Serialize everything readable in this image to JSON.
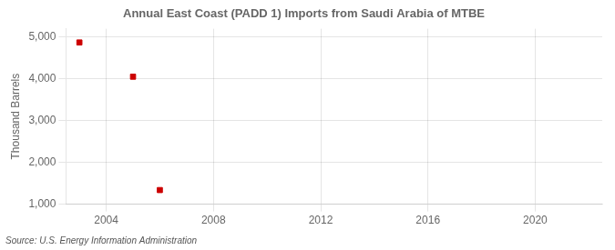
{
  "chart_data": {
    "type": "scatter",
    "title": "Annual East Coast (PADD 1) Imports from Saudi Arabia of MTBE",
    "ylabel": "Thousand Barrels",
    "annotation": "Source: U.S. Energy Information Administration",
    "x": [
      2003,
      2005,
      2006
    ],
    "values": [
      4871,
      4052,
      1338
    ],
    "color": "#cc0000",
    "marker": "square",
    "xlim": [
      2002.5,
      2022.5
    ],
    "ylim": [
      1000,
      5200
    ],
    "xticks": [
      2004,
      2008,
      2012,
      2016,
      2020
    ],
    "yticks": [
      {
        "value": 1000,
        "label": "1,000"
      },
      {
        "value": 2000,
        "label": "2,000"
      },
      {
        "value": 3000,
        "label": "3,000"
      },
      {
        "value": 4000,
        "label": "4,000"
      },
      {
        "value": 5000,
        "label": "5,000"
      }
    ],
    "grid": true
  }
}
